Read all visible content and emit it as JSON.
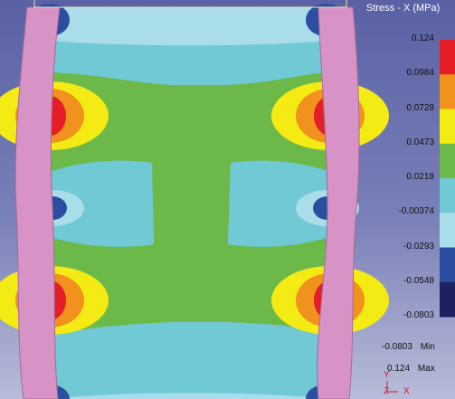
{
  "legend": {
    "title": "Stress - X (MPa)",
    "values": [
      "0.124",
      "0.0984",
      "0.0728",
      "0.0473",
      "0.0218",
      "-0.00374",
      "-0.0293",
      "-0.0548",
      "-0.0803"
    ],
    "colors": [
      "#e41d26",
      "#f2921e",
      "#f4ea14",
      "#6cb94a",
      "#70c9d4",
      "#a9dde9",
      "#2b4ea0",
      "#1d2160"
    ]
  },
  "min": {
    "value": "-0.0803",
    "label": "Min"
  },
  "max": {
    "value": "0.124",
    "label": "Max"
  },
  "triad": {
    "y": "Y",
    "z": "Z",
    "x": "X"
  },
  "colors": {
    "shell": "#d793c6",
    "background_top": "#5a61a4",
    "background_bottom": "#b9bcd9"
  }
}
